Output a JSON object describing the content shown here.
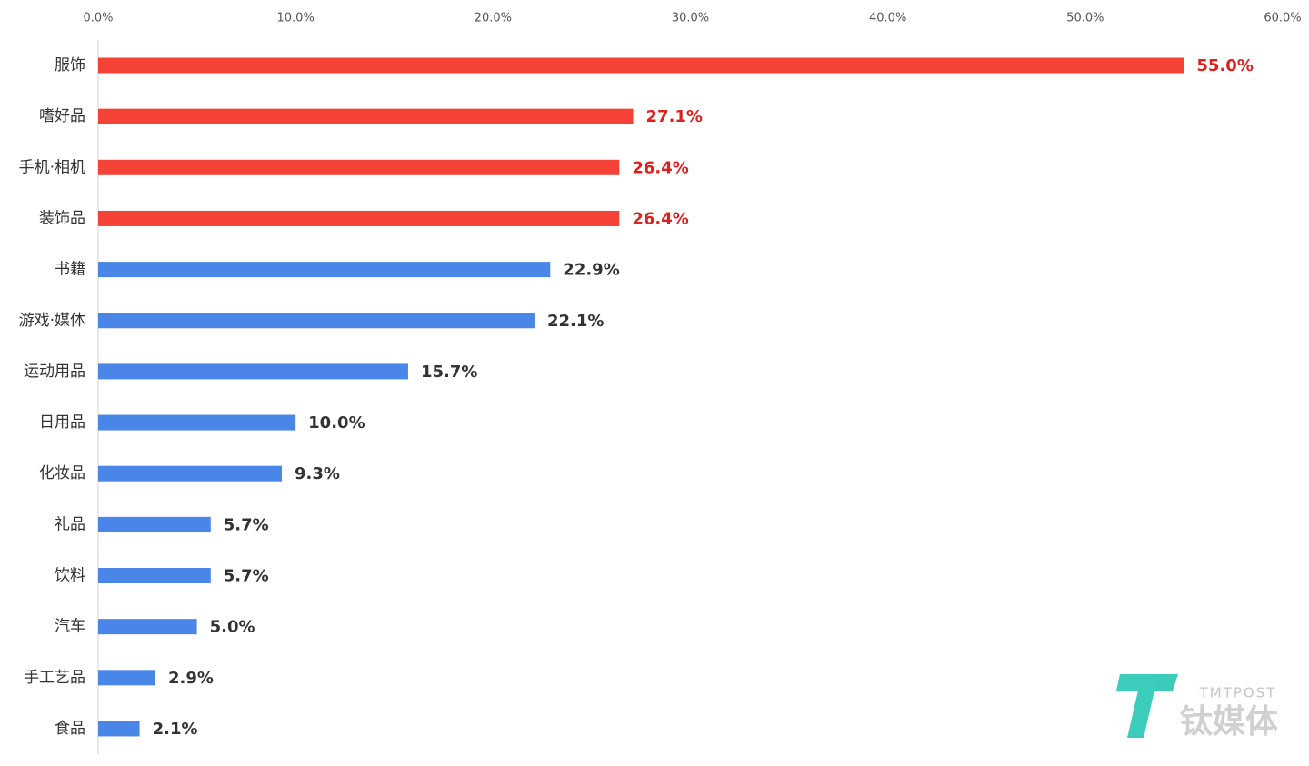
{
  "chart_data": {
    "type": "hbar",
    "categories": [
      "服饰",
      "嗜好品",
      "手机·相机",
      "装饰品",
      "书籍",
      "游戏·媒体",
      "运动用品",
      "日用品",
      "化妆品",
      "礼品",
      "饮料",
      "汽车",
      "手工艺品",
      "食品"
    ],
    "values": [
      55.0,
      27.1,
      26.4,
      26.4,
      22.9,
      22.1,
      15.7,
      10.0,
      9.3,
      5.7,
      5.7,
      5.0,
      2.9,
      2.1
    ],
    "value_labels": [
      "55.0%",
      "27.1%",
      "26.4%",
      "26.4%",
      "22.9%",
      "22.1%",
      "15.7%",
      "10.0%",
      "9.3%",
      "5.7%",
      "5.7%",
      "5.0%",
      "2.9%",
      "2.1%"
    ],
    "colors": [
      "#f44336",
      "#f44336",
      "#f44336",
      "#f44336",
      "#4a86e8",
      "#4a86e8",
      "#4a86e8",
      "#4a86e8",
      "#4a86e8",
      "#4a86e8",
      "#4a86e8",
      "#4a86e8",
      "#4a86e8",
      "#4a86e8"
    ],
    "label_colors": [
      "#e0201c",
      "#e0201c",
      "#e0201c",
      "#e0201c",
      "#333333",
      "#333333",
      "#333333",
      "#333333",
      "#333333",
      "#333333",
      "#333333",
      "#333333",
      "#333333",
      "#333333"
    ],
    "xlim": [
      0,
      60
    ],
    "xticks": [
      {
        "value": 0,
        "label": "0.0%"
      },
      {
        "value": 10,
        "label": "10.0%"
      },
      {
        "value": 20,
        "label": "20.0%"
      },
      {
        "value": 30,
        "label": "30.0%"
      },
      {
        "value": 40,
        "label": "40.0%"
      },
      {
        "value": 50,
        "label": "50.0%"
      },
      {
        "value": 60,
        "label": "60.0%"
      }
    ],
    "grid": false
  },
  "watermark": {
    "brand": "TMTPOST",
    "name": "钛媒体"
  }
}
